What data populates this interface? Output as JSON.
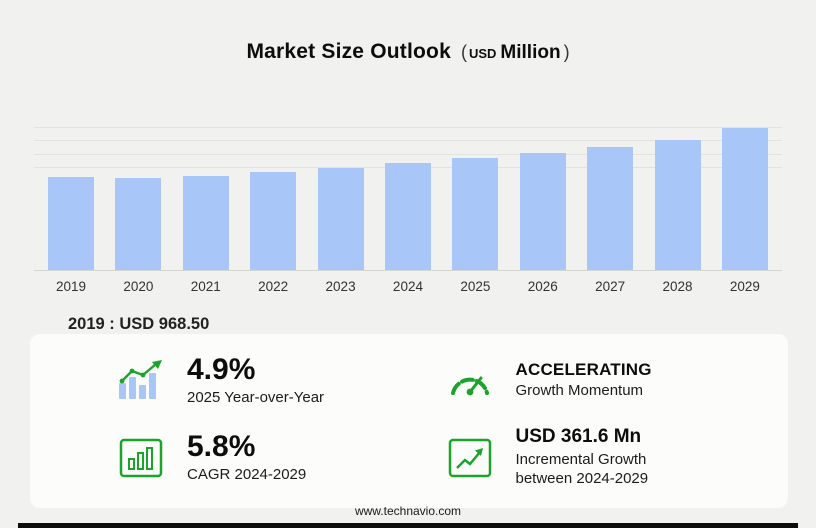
{
  "header": {
    "title": "Market Size Outlook",
    "unit_open": "(",
    "unit_currency": "USD",
    "unit_word": "Million",
    "unit_close": ")"
  },
  "chart_data": {
    "type": "bar",
    "title": "Market Size Outlook (USD Million)",
    "unit": "USD Million",
    "categories": [
      "2019",
      "2020",
      "2021",
      "2022",
      "2023",
      "2024",
      "2025",
      "2026",
      "2027",
      "2028",
      "2029"
    ],
    "values": [
      968.5,
      950,
      975,
      1015,
      1055,
      1110,
      1164.4,
      1215,
      1275,
      1350,
      1471.6
    ],
    "ylim": [
      0,
      1500
    ],
    "grid": true,
    "legend": false,
    "bar_color": "#a9c6f8",
    "annotation": "2019 : USD 968.50"
  },
  "stats": [
    {
      "icon": "bar-chart-up-arrow-icon",
      "value": "4.9%",
      "label": "2025 Year-over-Year"
    },
    {
      "icon": "speedometer-icon",
      "value": "ACCELERATING",
      "label": "Growth Momentum"
    },
    {
      "icon": "boxed-bar-chart-icon",
      "value": "5.8%",
      "label": "CAGR 2024-2029"
    },
    {
      "icon": "boxed-growth-arrow-icon",
      "value": "USD 361.6 Mn",
      "label": "Incremental Growth between 2024-2029"
    }
  ],
  "footer": {
    "url": "www.technavio.com"
  },
  "colors": {
    "accent_green": "#1aa42b",
    "bar_blue": "#a9c6f8",
    "background": "#f1f1ef"
  }
}
